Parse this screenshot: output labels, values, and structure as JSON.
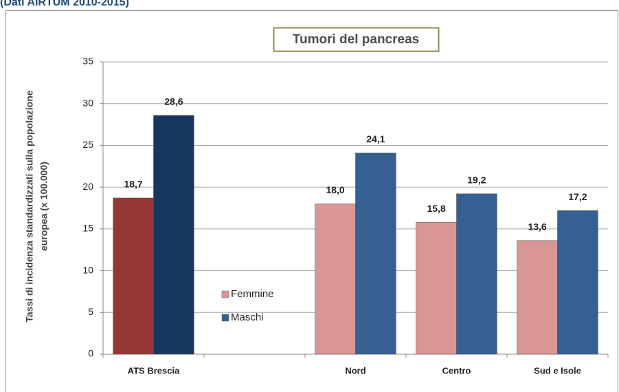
{
  "chart_data": {
    "type": "bar",
    "source": "(Dati AIRTUM 2010-2015)",
    "title": "Tumori del pancreas",
    "ylabel": [
      "Tassi di incidenza standardizzati sulla popolazione",
      "europea (x 100.000)"
    ],
    "categories": [
      "ATS Brescia",
      null,
      "Nord",
      "Centro",
      "Sud e Isole"
    ],
    "series": [
      {
        "name": "Femmine",
        "color": "#d99694",
        "colors": [
          "#953735",
          null,
          "#d99694",
          "#d99694",
          "#d99694"
        ],
        "values": [
          18.7,
          null,
          18.0,
          15.8,
          13.6
        ],
        "value_labels": [
          "18,7",
          null,
          "18,0",
          "15,8",
          "13,6"
        ]
      },
      {
        "name": "Maschi",
        "color": "#376092",
        "colors": [
          "#17375e",
          null,
          "#376092",
          "#376092",
          "#376092"
        ],
        "values": [
          28.6,
          null,
          24.1,
          19.2,
          17.2
        ],
        "value_labels": [
          "28,6",
          null,
          "24,1",
          "19,2",
          "17,2"
        ]
      }
    ],
    "ylim": [
      0,
      35
    ],
    "yticks": [
      0,
      5,
      10,
      15,
      20,
      25,
      30,
      35
    ],
    "grid": true
  }
}
